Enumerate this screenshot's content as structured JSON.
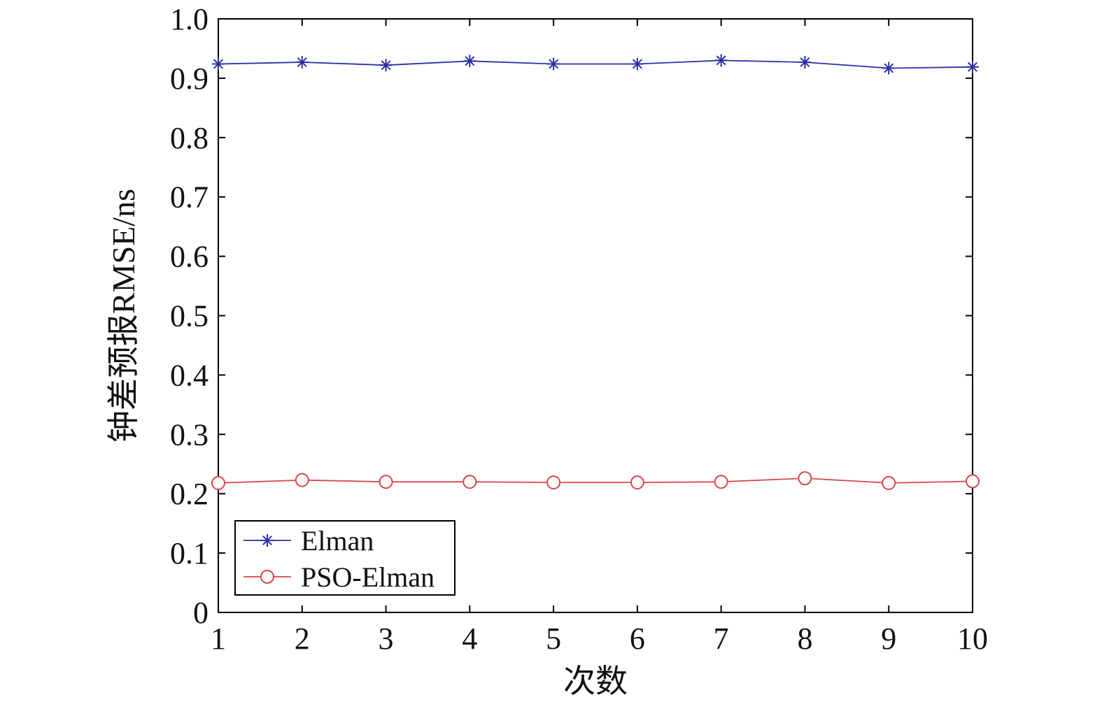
{
  "chart_data": {
    "type": "line",
    "title": "",
    "xlabel": "次数",
    "ylabel": "钟差预报RMSE/ns",
    "x": [
      1,
      2,
      3,
      4,
      5,
      6,
      7,
      8,
      9,
      10
    ],
    "xlim": [
      1,
      10
    ],
    "ylim": [
      0,
      1.0
    ],
    "xticks": [
      "1",
      "2",
      "3",
      "4",
      "5",
      "6",
      "7",
      "8",
      "9",
      "10"
    ],
    "yticks": [
      "0",
      "0.1",
      "0.2",
      "0.3",
      "0.4",
      "0.5",
      "0.6",
      "0.7",
      "0.8",
      "0.9",
      "1.0"
    ],
    "grid": false,
    "legend_position": "bottom-left",
    "series": [
      {
        "name": "Elman",
        "values": [
          0.924,
          0.927,
          0.922,
          0.929,
          0.924,
          0.924,
          0.93,
          0.927,
          0.917,
          0.919
        ],
        "color": "#2b2fa8",
        "marker": "asterisk"
      },
      {
        "name": "PSO-Elman",
        "values": [
          0.218,
          0.223,
          0.22,
          0.22,
          0.219,
          0.219,
          0.22,
          0.226,
          0.218,
          0.221
        ],
        "color": "#d9474f",
        "marker": "circle"
      }
    ]
  }
}
